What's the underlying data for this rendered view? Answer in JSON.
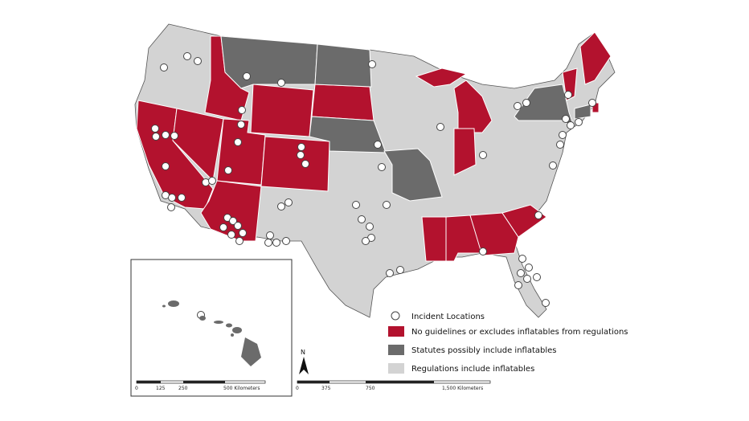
{
  "legend": {
    "incident": "Incident Locations",
    "none": "No guidelines or excludes inflatables from regulations",
    "statutes": "Statutes possibly include inflatables",
    "regulations": "Regulations include inflatables"
  },
  "north_arrow": "N",
  "inset_scale": [
    "0",
    "125",
    "250",
    "500 Kilometers"
  ],
  "main_scale": [
    "0",
    "375",
    "750",
    "1,500 Kilometers"
  ]
}
